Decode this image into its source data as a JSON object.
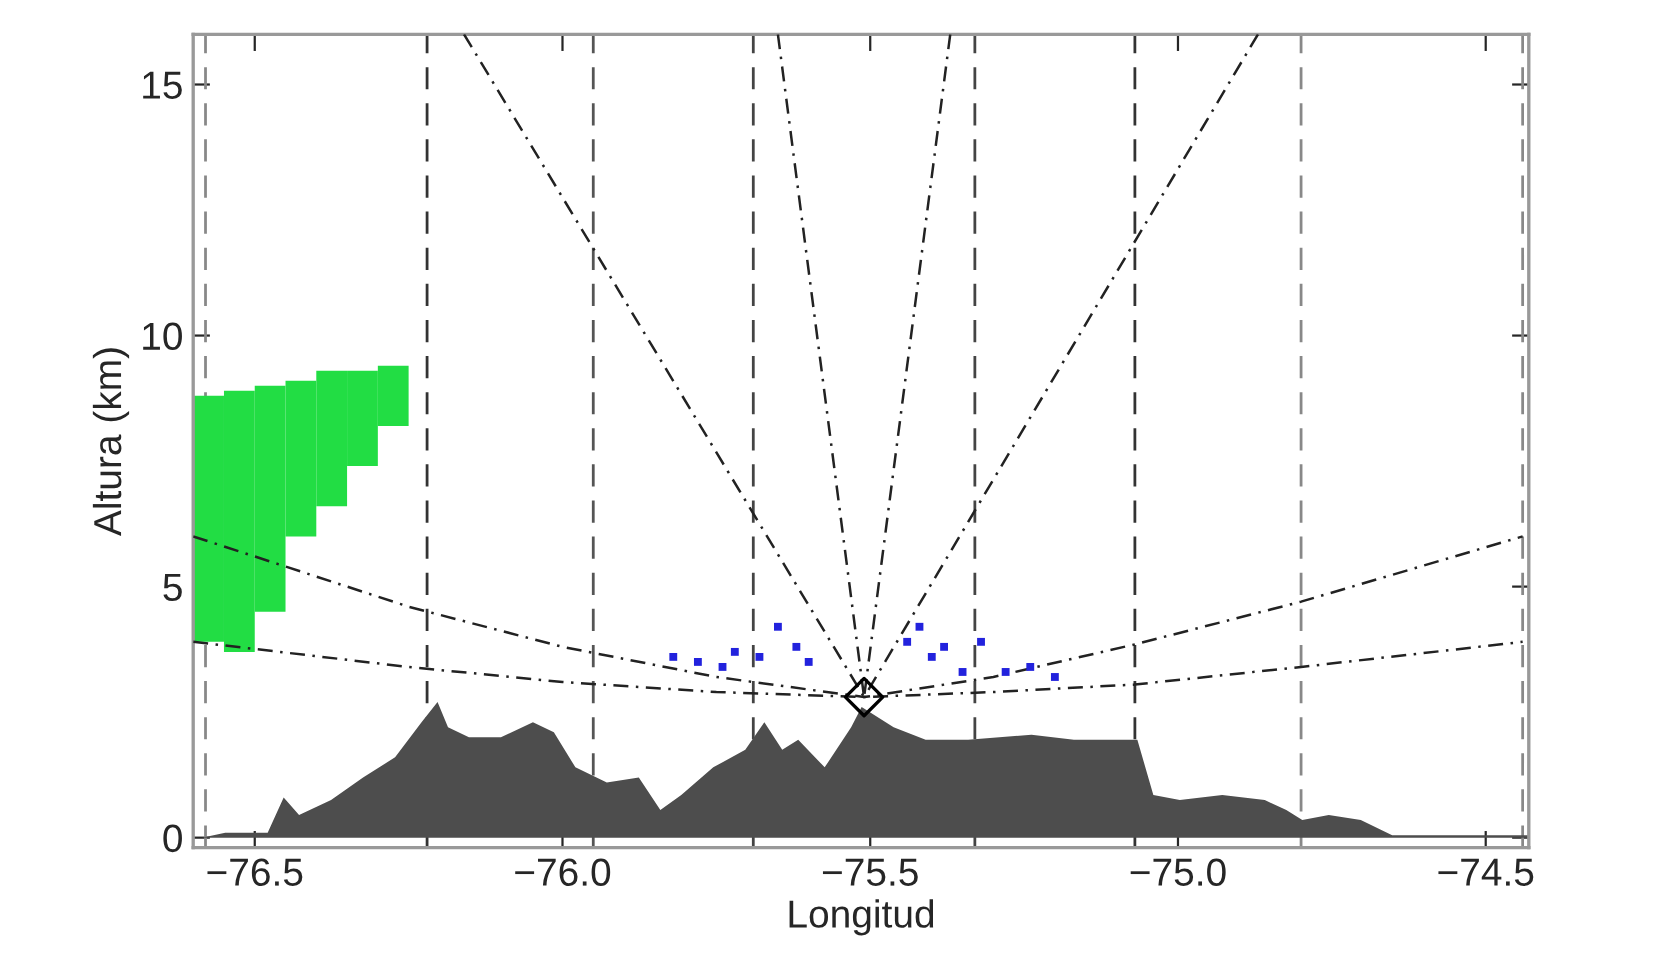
{
  "chart_data": {
    "type": "area",
    "xlabel": "Longitud",
    "ylabel": "Altura (km)",
    "xlim": [
      -76.6,
      -74.43
    ],
    "ylim": [
      -0.2,
      16
    ],
    "xticks": [
      {
        "value": -76.5,
        "label": "−76.5"
      },
      {
        "value": -76.0,
        "label": "−76.0"
      },
      {
        "value": -75.5,
        "label": "−75.5"
      },
      {
        "value": -75.0,
        "label": "−75.0"
      },
      {
        "value": -74.5,
        "label": "−74.5"
      }
    ],
    "yticks": [
      0,
      5,
      10,
      15
    ],
    "grid": false,
    "legend": false,
    "ref_lines": [
      {
        "axis": "x",
        "value": -76.58,
        "color": "#888888",
        "line_style": "dashed"
      },
      {
        "axis": "x",
        "value": -76.22,
        "color": "#333333",
        "line_style": "dashed"
      },
      {
        "axis": "x",
        "value": -75.95,
        "color": "#555555",
        "line_style": "dashed"
      },
      {
        "axis": "x",
        "value": -75.69,
        "color": "#444444",
        "line_style": "dashed"
      },
      {
        "axis": "x",
        "value": -75.33,
        "color": "#444444",
        "line_style": "dashed"
      },
      {
        "axis": "x",
        "value": -75.07,
        "color": "#333333",
        "line_style": "dashed"
      },
      {
        "axis": "x",
        "value": -74.8,
        "color": "#888888",
        "line_style": "dashed"
      },
      {
        "axis": "x",
        "value": -74.44,
        "color": "#888888",
        "line_style": "dashed"
      }
    ],
    "series": [
      {
        "color": "#4d4d4d",
        "x": [
          -76.586,
          -76.548,
          -76.479,
          -76.453,
          -76.428,
          -76.376,
          -76.324,
          -76.272,
          -76.229,
          -76.203,
          -76.186,
          -76.152,
          -76.1,
          -76.048,
          -76.014,
          -75.979,
          -75.928,
          -75.876,
          -75.841,
          -75.807,
          -75.755,
          -75.703,
          -75.672,
          -75.643,
          -75.617,
          -75.574,
          -75.531,
          -75.514,
          -75.462,
          -75.41,
          -75.341,
          -75.238,
          -75.169,
          -75.066,
          -75.04,
          -74.997,
          -74.928,
          -74.859,
          -74.824,
          -74.798,
          -74.755,
          -74.703,
          -74.652,
          -74.566,
          -74.431
        ],
        "values": [
          0,
          0.1,
          0.1,
          0.8,
          0.45,
          0.75,
          1.2,
          1.6,
          2.3,
          2.7,
          2.2,
          2.0,
          2.0,
          2.3,
          2.1,
          1.4,
          1.1,
          1.2,
          0.55,
          0.85,
          1.4,
          1.75,
          2.3,
          1.75,
          1.95,
          1.4,
          2.2,
          2.6,
          2.2,
          1.95,
          1.95,
          2.05,
          1.95,
          1.95,
          0.85,
          0.75,
          0.85,
          0.75,
          0.55,
          0.35,
          0.45,
          0.35,
          0.05,
          0.05,
          0.05
        ]
      },
      {
        "type": "bar",
        "color": "#22dd44",
        "x": [
          -76.575,
          -76.525,
          -76.475,
          -76.425,
          -76.375,
          -76.325,
          -76.275
        ],
        "base": [
          3.9,
          3.7,
          4.5,
          6.0,
          6.6,
          7.4,
          8.2
        ],
        "values": [
          4.9,
          5.2,
          4.5,
          3.1,
          2.7,
          1.9,
          1.2
        ]
      },
      {
        "type": "scatter",
        "color": "#2222dd",
        "marker": "square",
        "x": [
          -75.82,
          -75.78,
          -75.74,
          -75.72,
          -75.68,
          -75.65,
          -75.62,
          -75.6,
          -75.44,
          -75.42,
          -75.4,
          -75.38,
          -75.35,
          -75.32,
          -75.28,
          -75.24,
          -75.2
        ],
        "values": [
          3.6,
          3.5,
          3.4,
          3.7,
          3.6,
          4.2,
          3.8,
          3.5,
          3.9,
          4.2,
          3.6,
          3.8,
          3.3,
          3.9,
          3.3,
          3.4,
          3.2
        ]
      },
      {
        "type": "line",
        "color": "#222222",
        "line_style": "dashdot",
        "x": [
          -76.6,
          -76.25,
          -76.0,
          -75.75,
          -75.51,
          -75.3,
          -75.07,
          -74.8,
          -74.44
        ],
        "values": [
          6.0,
          4.6,
          3.8,
          3.2,
          2.8,
          3.2,
          3.85,
          4.7,
          6.0
        ]
      },
      {
        "type": "line",
        "color": "#222222",
        "line_style": "dashdot",
        "x": [
          -76.6,
          -76.25,
          -76.0,
          -75.75,
          -75.51,
          -75.3,
          -75.07,
          -74.8,
          -74.44
        ],
        "values": [
          3.9,
          3.4,
          3.1,
          2.9,
          2.8,
          2.9,
          3.05,
          3.4,
          3.9
        ]
      },
      {
        "type": "line",
        "color": "#222222",
        "line_style": "dashdot",
        "x": [
          -76.16,
          -75.51
        ],
        "values": [
          16,
          2.8
        ]
      },
      {
        "type": "line",
        "color": "#222222",
        "line_style": "dashdot",
        "x": [
          -75.65,
          -75.51
        ],
        "values": [
          16,
          2.8
        ]
      },
      {
        "type": "line",
        "color": "#222222",
        "line_style": "dashdot",
        "x": [
          -75.37,
          -75.51
        ],
        "values": [
          16,
          2.8
        ]
      },
      {
        "type": "line",
        "color": "#222222",
        "line_style": "dashdot",
        "x": [
          -74.87,
          -75.51
        ],
        "values": [
          16,
          2.8
        ]
      },
      {
        "type": "scatter",
        "color": "#000000",
        "marker": "diamond",
        "x": [
          -75.51
        ],
        "values": [
          2.8
        ]
      }
    ]
  }
}
